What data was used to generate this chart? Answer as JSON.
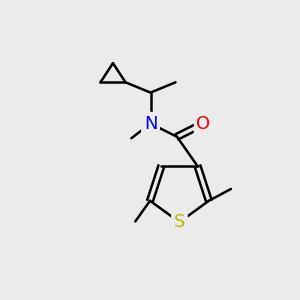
{
  "bg_color": "#ebebeb",
  "atom_colors": {
    "N": "#0000ee",
    "O": "#ee0000",
    "S": "#bbbb00",
    "C": "#000000"
  },
  "bond_color": "#000000",
  "bond_width": 1.8,
  "font_size": 13
}
